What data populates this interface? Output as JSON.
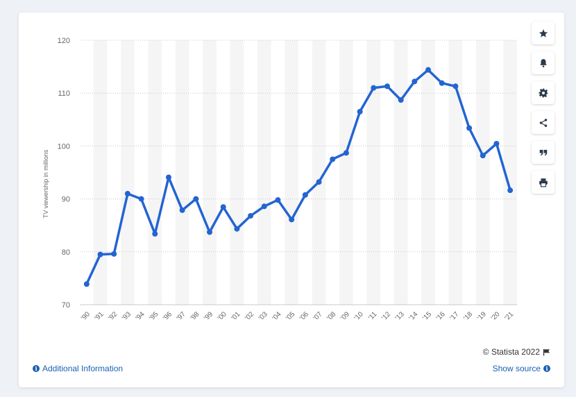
{
  "chart_data": {
    "type": "line",
    "ylabel": "TV viewership in millions",
    "ylim": [
      70,
      120
    ],
    "yticks": [
      120,
      110,
      100,
      90,
      80,
      70
    ],
    "categories": [
      "'90",
      "'91",
      "'92",
      "'93",
      "'94",
      "'95",
      "'96",
      "'97",
      "'98",
      "'99",
      "'00",
      "'01",
      "'02",
      "'03",
      "'04",
      "'05",
      "'06",
      "'07",
      "'08",
      "'09",
      "'10",
      "'11",
      "'12",
      "'13",
      "'14",
      "'15",
      "'16",
      "'17",
      "'18",
      "'19",
      "'20",
      "'21"
    ],
    "series": [
      {
        "values": [
          73.9,
          79.5,
          79.6,
          90.99,
          90.0,
          83.4,
          94.08,
          87.87,
          90.0,
          83.72,
          88.47,
          84.34,
          86.8,
          88.6,
          89.8,
          86.1,
          90.75,
          93.2,
          97.5,
          98.7,
          106.5,
          111.0,
          111.3,
          108.7,
          112.2,
          114.4,
          111.9,
          111.3,
          103.4,
          98.2,
          100.45,
          91.63
        ],
        "color": "#2364d2"
      }
    ],
    "grid": true,
    "legend": "none"
  },
  "footer": {
    "credit": "© Statista 2022",
    "additional_info": "Additional Information",
    "show_source": "Show source"
  },
  "tools": [
    "star-icon",
    "bell-icon",
    "gear-icon",
    "share-icon",
    "quote-icon",
    "print-icon"
  ]
}
